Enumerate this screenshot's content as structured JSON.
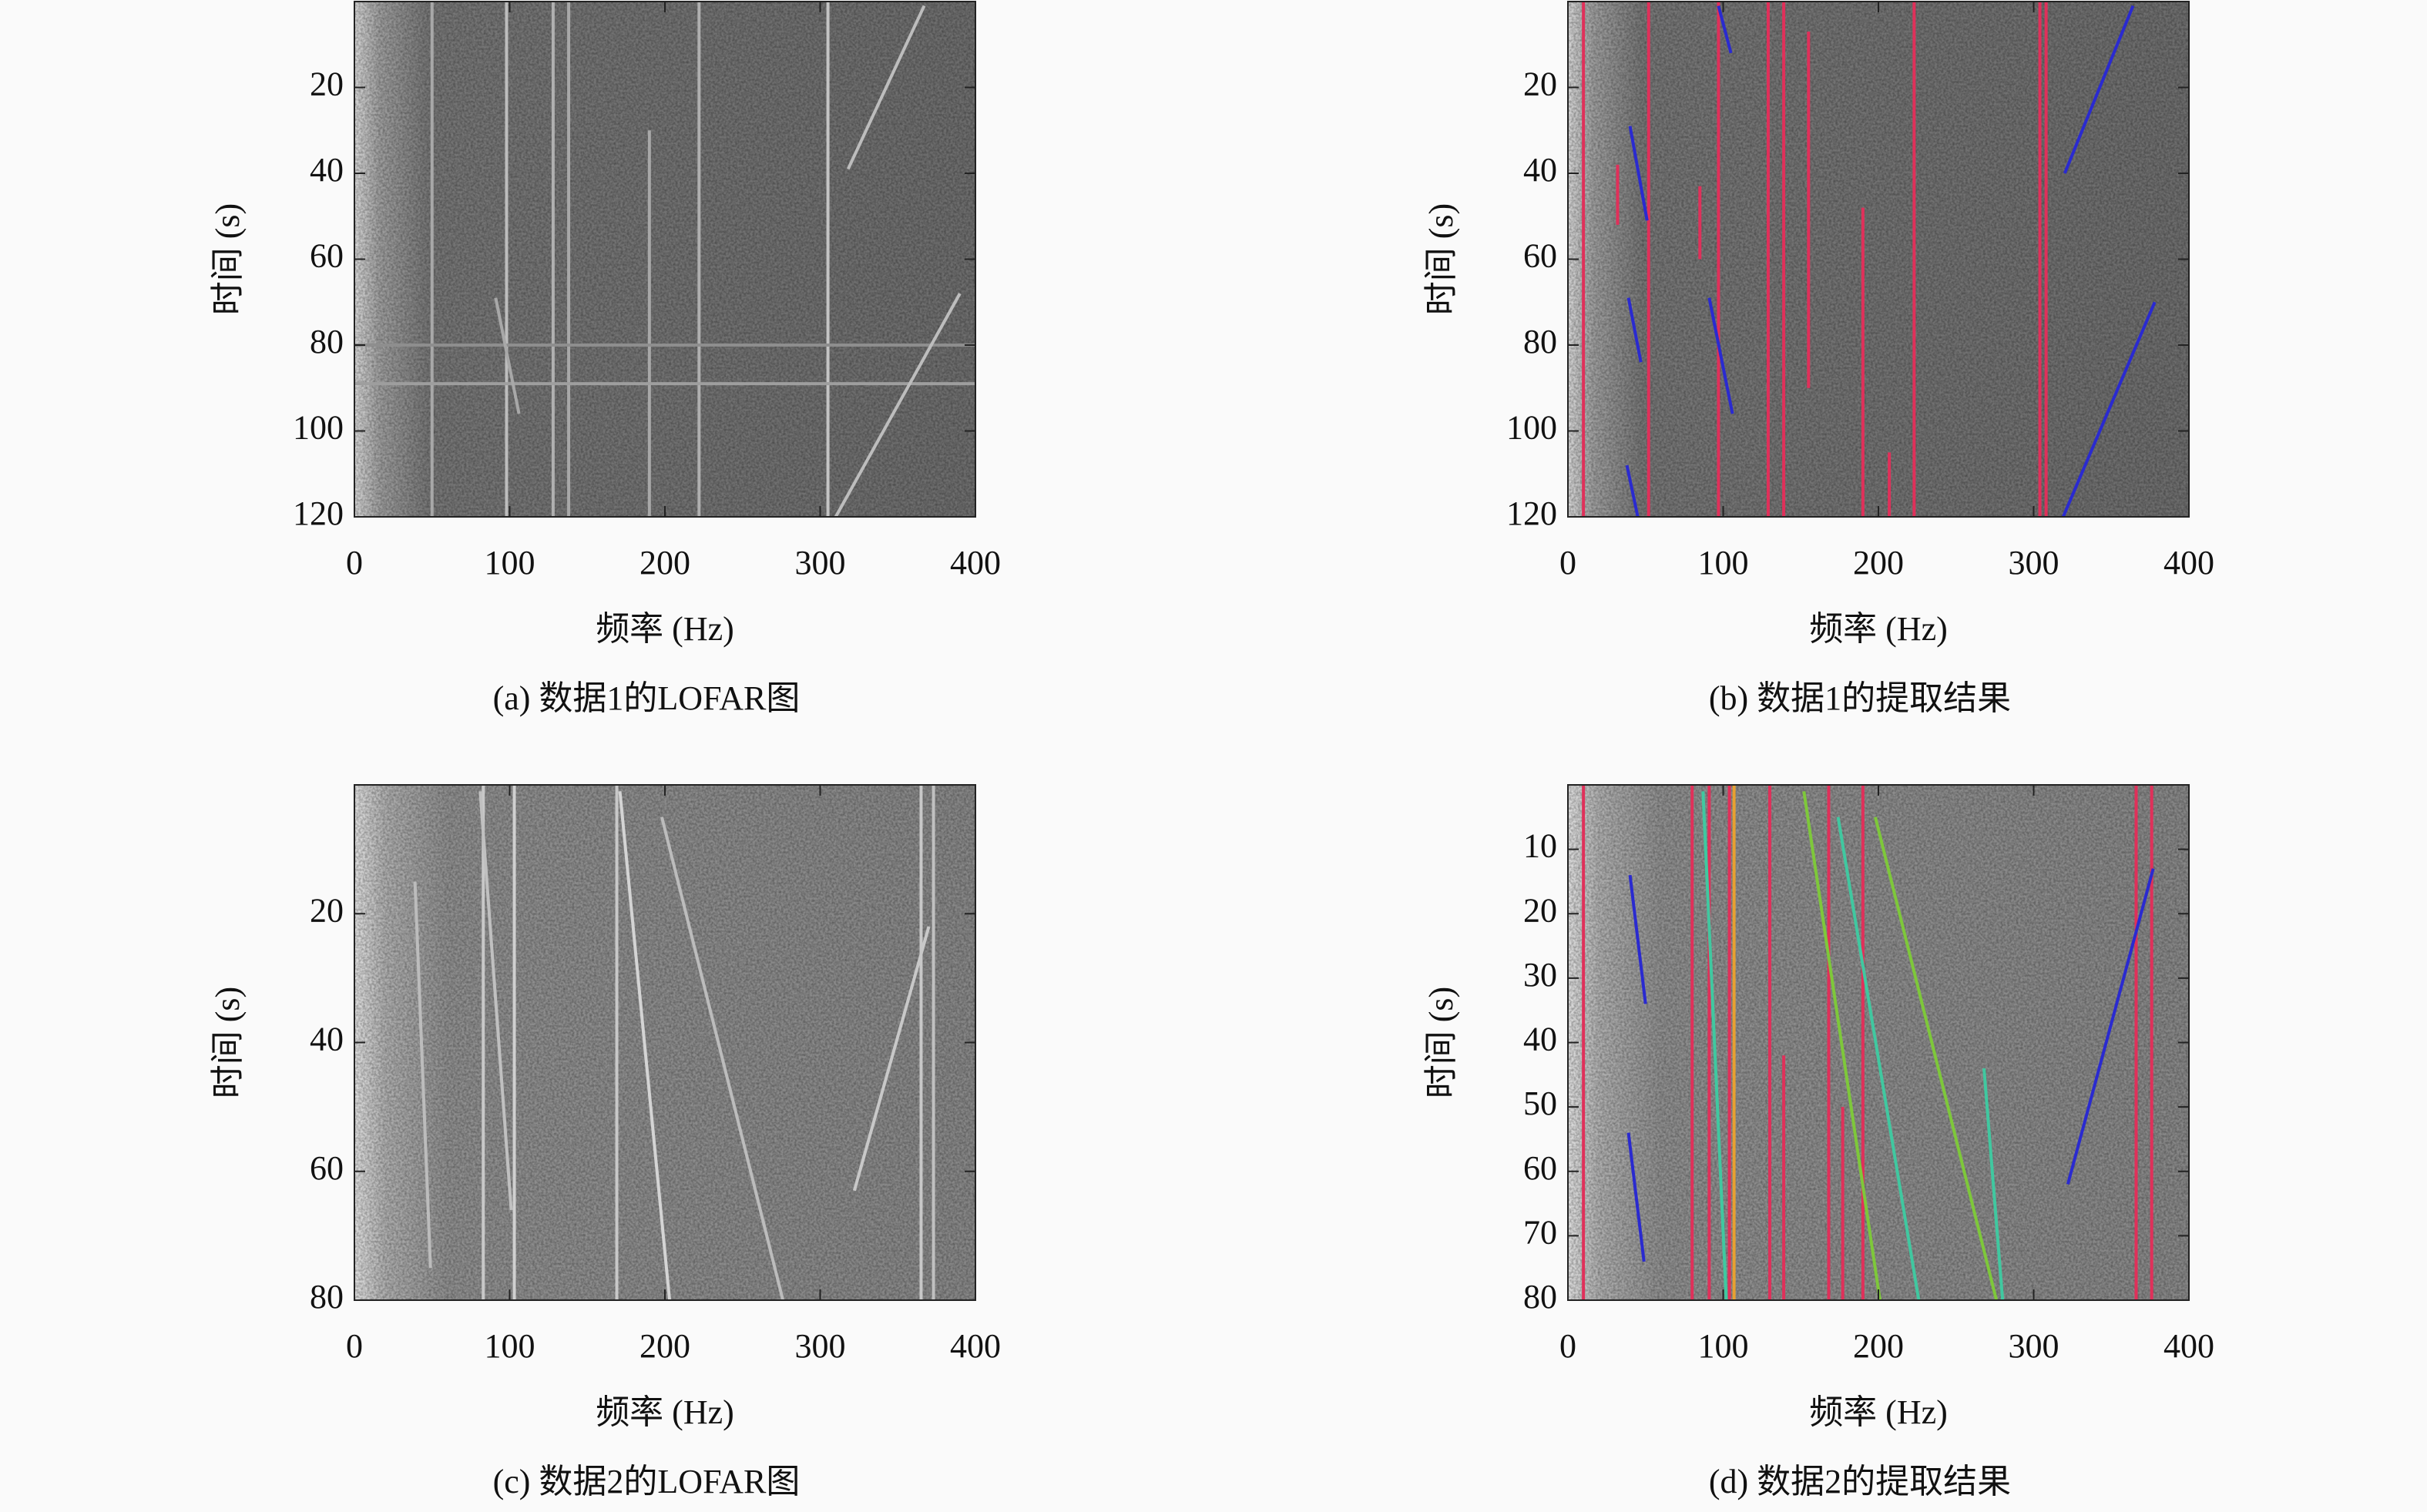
{
  "chart_data": [
    {
      "type": "spectrogram",
      "caption": "(a) 数据1的LOFAR图",
      "xlabel": "频率 (Hz)",
      "ylabel": "时间 (s)",
      "xlim": [
        0,
        400
      ],
      "ylim": [
        0,
        120
      ],
      "y_inverted": true,
      "xticks": [
        0,
        100,
        200,
        300,
        400
      ],
      "yticks": [
        20,
        40,
        60,
        80,
        100,
        120
      ],
      "series": [
        {
          "color": "#bdbdbd",
          "x": [
            98,
            98
          ],
          "y": [
            0,
            120
          ]
        },
        {
          "color": "#a8a8a8",
          "x": [
            50,
            50
          ],
          "y": [
            0,
            120
          ]
        },
        {
          "color": "#b0b0b0",
          "x": [
            128,
            128
          ],
          "y": [
            0,
            120
          ]
        },
        {
          "color": "#a8a8a8",
          "x": [
            138,
            138
          ],
          "y": [
            0,
            120
          ]
        },
        {
          "color": "#a8a8a8",
          "x": [
            190,
            190
          ],
          "y": [
            30,
            120
          ]
        },
        {
          "color": "#b0b0b0",
          "x": [
            222,
            222
          ],
          "y": [
            0,
            120
          ]
        },
        {
          "color": "#c4c4c4",
          "x": [
            305,
            305
          ],
          "y": [
            0,
            120
          ]
        },
        {
          "color": "#9e9e9e",
          "x": [
            0,
            400
          ],
          "y": [
            89,
            89
          ]
        },
        {
          "color": "#8e8e8e",
          "x": [
            0,
            400
          ],
          "y": [
            80,
            80
          ]
        },
        {
          "color": "#bdbdbd",
          "x": [
            318,
            367
          ],
          "y": [
            39,
            1
          ]
        },
        {
          "color": "#bdbdbd",
          "x": [
            310,
            390
          ],
          "y": [
            120,
            68
          ]
        },
        {
          "color": "#a8a8a8",
          "x": [
            91,
            106
          ],
          "y": [
            69,
            96
          ]
        }
      ]
    },
    {
      "type": "spectrogram",
      "caption": "(b) 数据1的提取结果",
      "xlabel": "频率 (Hz)",
      "ylabel": "时间 (s)",
      "xlim": [
        0,
        400
      ],
      "ylim": [
        0,
        120
      ],
      "y_inverted": true,
      "xticks": [
        0,
        100,
        200,
        300,
        400
      ],
      "yticks": [
        20,
        40,
        60,
        80,
        100,
        120
      ],
      "series": [
        {
          "color": "#e0305a",
          "x": [
            10,
            10
          ],
          "y": [
            0,
            120
          ]
        },
        {
          "color": "#e0305a",
          "x": [
            52,
            52
          ],
          "y": [
            0,
            120
          ]
        },
        {
          "color": "#e0305a",
          "x": [
            97,
            97
          ],
          "y": [
            0,
            120
          ]
        },
        {
          "color": "#e0305a",
          "x": [
            129,
            129
          ],
          "y": [
            0,
            120
          ]
        },
        {
          "color": "#e0305a",
          "x": [
            139,
            139
          ],
          "y": [
            0,
            120
          ]
        },
        {
          "color": "#e0305a",
          "x": [
            155,
            155
          ],
          "y": [
            7,
            90
          ]
        },
        {
          "color": "#e0305a",
          "x": [
            190,
            190
          ],
          "y": [
            48,
            120
          ]
        },
        {
          "color": "#e0305a",
          "x": [
            207,
            207
          ],
          "y": [
            105,
            120
          ]
        },
        {
          "color": "#e0305a",
          "x": [
            223,
            223
          ],
          "y": [
            0,
            120
          ]
        },
        {
          "color": "#e0305a",
          "x": [
            304,
            304
          ],
          "y": [
            0,
            120
          ]
        },
        {
          "color": "#e0305a",
          "x": [
            308,
            308
          ],
          "y": [
            0,
            120
          ]
        },
        {
          "color": "#e0305a",
          "x": [
            32,
            32
          ],
          "y": [
            38,
            52
          ]
        },
        {
          "color": "#e0305a",
          "x": [
            85,
            85
          ],
          "y": [
            43,
            60
          ]
        },
        {
          "color": "#2a2ad0",
          "x": [
            40,
            51
          ],
          "y": [
            29,
            51
          ]
        },
        {
          "color": "#2a2ad0",
          "x": [
            39,
            47
          ],
          "y": [
            69,
            84
          ]
        },
        {
          "color": "#2a2ad0",
          "x": [
            38,
            45
          ],
          "y": [
            108,
            120
          ]
        },
        {
          "color": "#2a2ad0",
          "x": [
            91,
            106
          ],
          "y": [
            69,
            96
          ]
        },
        {
          "color": "#2a2ad0",
          "x": [
            97,
            105
          ],
          "y": [
            1,
            12
          ]
        },
        {
          "color": "#2a2ad0",
          "x": [
            320,
            364
          ],
          "y": [
            40,
            1
          ]
        },
        {
          "color": "#2a2ad0",
          "x": [
            319,
            378
          ],
          "y": [
            120,
            70
          ]
        }
      ]
    },
    {
      "type": "spectrogram",
      "caption": "(c) 数据2的LOFAR图",
      "xlabel": "频率 (Hz)",
      "ylabel": "时间 (s)",
      "xlim": [
        0,
        400
      ],
      "ylim": [
        0,
        80
      ],
      "y_inverted": true,
      "xticks": [
        0,
        100,
        200,
        300,
        400
      ],
      "yticks": [
        20,
        40,
        60,
        80
      ],
      "series": [
        {
          "color": "#c8c8c8",
          "x": [
            83,
            83
          ],
          "y": [
            0,
            80
          ]
        },
        {
          "color": "#d0d0d0",
          "x": [
            103,
            103
          ],
          "y": [
            0,
            80
          ]
        },
        {
          "color": "#c8c8c8",
          "x": [
            169,
            169
          ],
          "y": [
            0,
            80
          ]
        },
        {
          "color": "#c8c8c8",
          "x": [
            365,
            365
          ],
          "y": [
            0,
            80
          ]
        },
        {
          "color": "#c0c0c0",
          "x": [
            373,
            373
          ],
          "y": [
            0,
            80
          ]
        },
        {
          "color": "#d4d4d4",
          "x": [
            171,
            203
          ],
          "y": [
            1,
            80
          ]
        },
        {
          "color": "#c8c8c8",
          "x": [
            322,
            370
          ],
          "y": [
            63,
            22
          ]
        },
        {
          "color": "#c0c0c0",
          "x": [
            81,
            101
          ],
          "y": [
            1,
            66
          ]
        },
        {
          "color": "#bcbcbc",
          "x": [
            39,
            49
          ],
          "y": [
            15,
            75
          ]
        },
        {
          "color": "#bcbcbc",
          "x": [
            198,
            276
          ],
          "y": [
            5,
            80
          ]
        }
      ]
    },
    {
      "type": "spectrogram",
      "caption": "(d) 数据2的提取结果",
      "xlabel": "频率 (Hz)",
      "ylabel": "时间 (s)",
      "xlim": [
        0,
        400
      ],
      "ylim": [
        0,
        80
      ],
      "y_inverted": true,
      "xticks": [
        0,
        100,
        200,
        300,
        400
      ],
      "yticks": [
        10,
        20,
        30,
        40,
        50,
        60,
        70,
        80
      ],
      "series": [
        {
          "color": "#e0305a",
          "x": [
            10,
            10
          ],
          "y": [
            0,
            80
          ]
        },
        {
          "color": "#e0305a",
          "x": [
            80,
            80
          ],
          "y": [
            0,
            80
          ]
        },
        {
          "color": "#e0305a",
          "x": [
            91,
            91
          ],
          "y": [
            0,
            80
          ]
        },
        {
          "color": "#e0305a",
          "x": [
            104,
            104
          ],
          "y": [
            0,
            80
          ]
        },
        {
          "color": "#e8a030",
          "x": [
            107,
            107
          ],
          "y": [
            0,
            80
          ]
        },
        {
          "color": "#e0305a",
          "x": [
            130,
            130
          ],
          "y": [
            0,
            80
          ]
        },
        {
          "color": "#e0305a",
          "x": [
            139,
            139
          ],
          "y": [
            42,
            80
          ]
        },
        {
          "color": "#e0305a",
          "x": [
            168,
            168
          ],
          "y": [
            0,
            80
          ]
        },
        {
          "color": "#e0305a",
          "x": [
            177,
            177
          ],
          "y": [
            50,
            80
          ]
        },
        {
          "color": "#e0305a",
          "x": [
            190,
            190
          ],
          "y": [
            0,
            80
          ]
        },
        {
          "color": "#e0305a",
          "x": [
            366,
            366
          ],
          "y": [
            0,
            80
          ]
        },
        {
          "color": "#e0305a",
          "x": [
            376,
            376
          ],
          "y": [
            0,
            80
          ]
        },
        {
          "color": "#2a2ad0",
          "x": [
            40,
            50
          ],
          "y": [
            14,
            34
          ]
        },
        {
          "color": "#2a2ad0",
          "x": [
            39,
            49
          ],
          "y": [
            54,
            74
          ]
        },
        {
          "color": "#2a2ad0",
          "x": [
            322,
            377
          ],
          "y": [
            62,
            13
          ]
        },
        {
          "color": "#40c8a0",
          "x": [
            87,
            102
          ],
          "y": [
            1,
            80
          ]
        },
        {
          "color": "#7ec83a",
          "x": [
            152,
            201
          ],
          "y": [
            1,
            80
          ]
        },
        {
          "color": "#40c8a0",
          "x": [
            174,
            226
          ],
          "y": [
            5,
            80
          ]
        },
        {
          "color": "#7ec83a",
          "x": [
            198,
            276
          ],
          "y": [
            5,
            80
          ]
        },
        {
          "color": "#40c8a0",
          "x": [
            268,
            280
          ],
          "y": [
            44,
            80
          ]
        }
      ]
    }
  ]
}
